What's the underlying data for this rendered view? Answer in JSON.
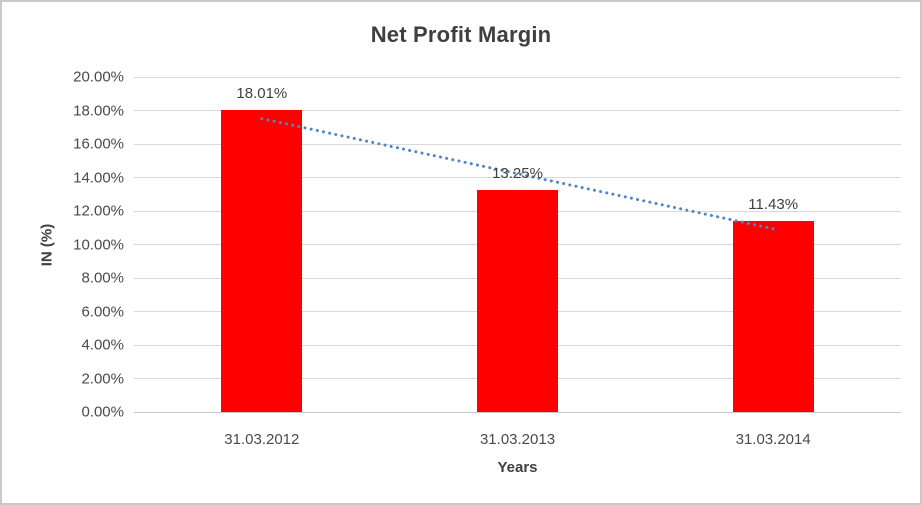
{
  "chart_data": {
    "type": "bar",
    "title": "Net Profit Margin",
    "xlabel": "Years",
    "ylabel": "IN (%)",
    "categories": [
      "31.03.2012",
      "31.03.2013",
      "31.03.2014"
    ],
    "values": [
      18.01,
      13.25,
      11.43
    ],
    "data_labels": [
      "18.01%",
      "13.25%",
      "11.43%"
    ],
    "ylim": [
      0,
      20
    ],
    "ytick_step": 2,
    "ytick_labels": [
      "0.00%",
      "2.00%",
      "4.00%",
      "6.00%",
      "8.00%",
      "10.00%",
      "12.00%",
      "14.00%",
      "16.00%",
      "18.00%",
      "20.00%"
    ],
    "grid": true,
    "legend": "none",
    "trendline": {
      "type": "linear",
      "style": "dotted",
      "color": "#4E86C8"
    },
    "colors": {
      "bar": "#FF0000",
      "gridline": "#D9D9D9",
      "axis_line": "#C6C6C6",
      "title_text": "#3F3F3F",
      "tick_text": "#4A4A4A",
      "background": "#FFFFFF",
      "border": "#C9C9C9"
    }
  }
}
